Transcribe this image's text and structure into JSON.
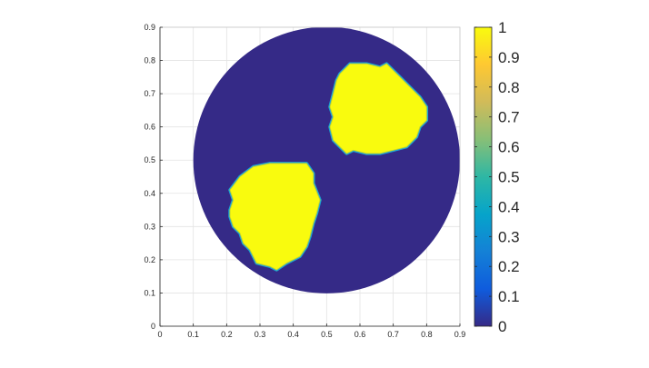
{
  "chart_data": {
    "type": "heatmap",
    "title": "",
    "xlabel": "",
    "ylabel": "",
    "xlim": [
      0,
      0.9
    ],
    "ylim": [
      0,
      0.9
    ],
    "grid": true,
    "x_ticks": [
      "0",
      "0.1",
      "0.2",
      "0.3",
      "0.4",
      "0.5",
      "0.6",
      "0.7",
      "0.8",
      "0.9"
    ],
    "y_ticks": [
      "0",
      "0.1",
      "0.2",
      "0.3",
      "0.4",
      "0.5",
      "0.6",
      "0.7",
      "0.8",
      "0.9"
    ],
    "domain": {
      "shape": "disk",
      "center": [
        0.5,
        0.5
      ],
      "radius": 0.4,
      "value": 0
    },
    "regions": [
      {
        "name": "upper-right blob",
        "value": 1,
        "boundary": [
          [
            0.57,
            0.79
          ],
          [
            0.62,
            0.79
          ],
          [
            0.66,
            0.78
          ],
          [
            0.68,
            0.79
          ],
          [
            0.72,
            0.75
          ],
          [
            0.75,
            0.72
          ],
          [
            0.78,
            0.69
          ],
          [
            0.8,
            0.66
          ],
          [
            0.8,
            0.62
          ],
          [
            0.78,
            0.6
          ],
          [
            0.77,
            0.57
          ],
          [
            0.74,
            0.54
          ],
          [
            0.7,
            0.53
          ],
          [
            0.66,
            0.52
          ],
          [
            0.62,
            0.52
          ],
          [
            0.58,
            0.53
          ],
          [
            0.56,
            0.52
          ],
          [
            0.54,
            0.54
          ],
          [
            0.52,
            0.56
          ],
          [
            0.51,
            0.6
          ],
          [
            0.52,
            0.63
          ],
          [
            0.51,
            0.66
          ],
          [
            0.52,
            0.7
          ],
          [
            0.53,
            0.74
          ],
          [
            0.54,
            0.76
          ]
        ]
      },
      {
        "name": "lower-left blob",
        "value": 1,
        "boundary": [
          [
            0.28,
            0.48
          ],
          [
            0.33,
            0.49
          ],
          [
            0.37,
            0.49
          ],
          [
            0.44,
            0.49
          ],
          [
            0.46,
            0.46
          ],
          [
            0.46,
            0.43
          ],
          [
            0.48,
            0.38
          ],
          [
            0.47,
            0.34
          ],
          [
            0.46,
            0.31
          ],
          [
            0.45,
            0.27
          ],
          [
            0.44,
            0.24
          ],
          [
            0.42,
            0.21
          ],
          [
            0.38,
            0.19
          ],
          [
            0.35,
            0.17
          ],
          [
            0.33,
            0.18
          ],
          [
            0.29,
            0.19
          ],
          [
            0.27,
            0.23
          ],
          [
            0.25,
            0.25
          ],
          [
            0.24,
            0.28
          ],
          [
            0.22,
            0.3
          ],
          [
            0.21,
            0.33
          ],
          [
            0.21,
            0.35
          ],
          [
            0.22,
            0.38
          ],
          [
            0.21,
            0.41
          ],
          [
            0.24,
            0.45
          ]
        ]
      }
    ],
    "colorbar": {
      "min": 0,
      "max": 1,
      "colormap": "parula",
      "ticks": [
        "0",
        "0.1",
        "0.2",
        "0.3",
        "0.4",
        "0.5",
        "0.6",
        "0.7",
        "0.8",
        "0.9",
        "1"
      ],
      "colors": [
        "#352a87",
        "#0f5cdd",
        "#1481d6",
        "#06a4ca",
        "#2eb7a4",
        "#87bf77",
        "#d1bb59",
        "#fec832",
        "#f9fb0e"
      ]
    }
  }
}
